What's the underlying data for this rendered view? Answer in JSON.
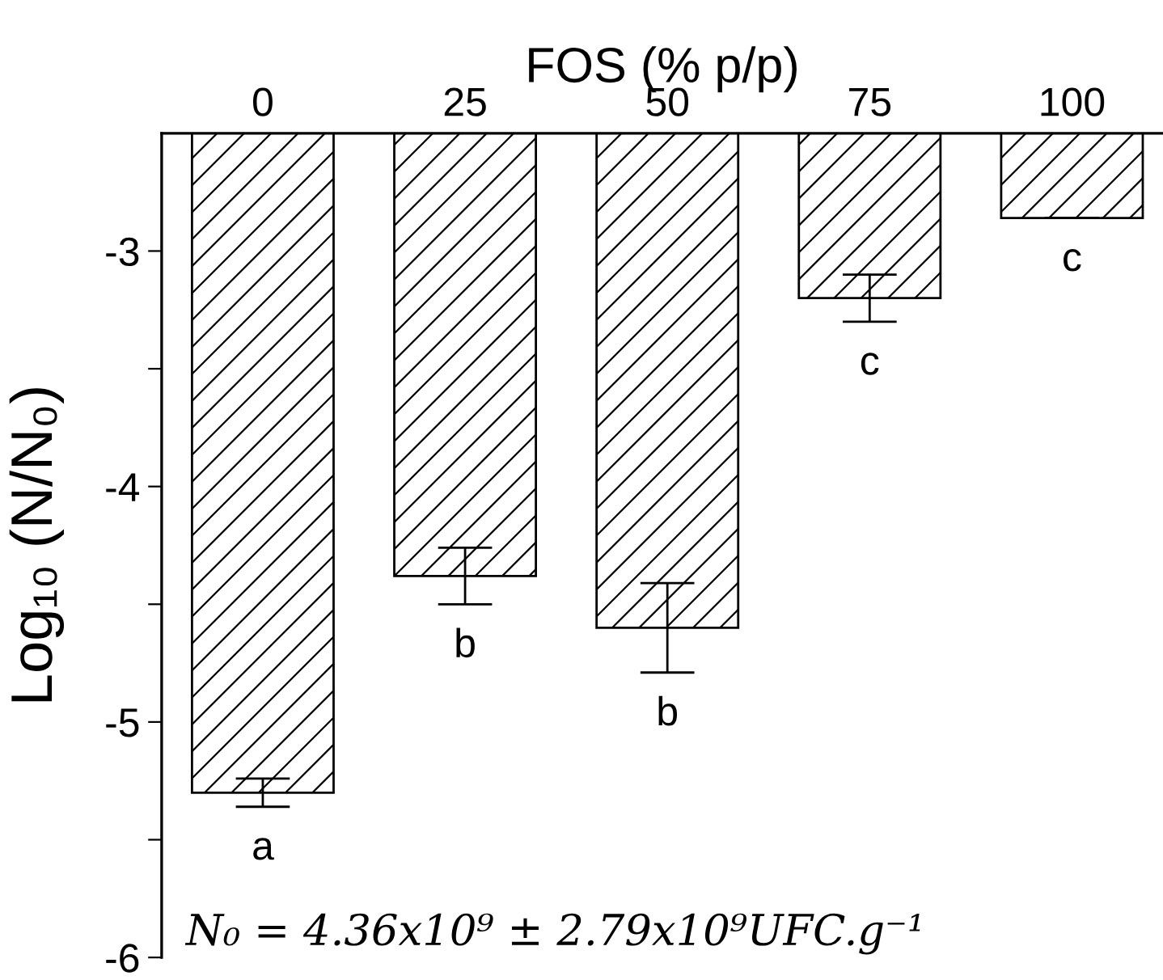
{
  "chart_data": {
    "type": "bar",
    "xlabel": "FOS (% p/p)",
    "ylabel": "Log₁₀ (N/N₀)",
    "categories": [
      "0",
      "25",
      "50",
      "75",
      "100"
    ],
    "values": [
      -5.3,
      -4.38,
      -4.6,
      -3.2,
      -2.86
    ],
    "errors": [
      0.06,
      0.12,
      0.19,
      0.1,
      0
    ],
    "color": "#000000",
    "ylim": [
      -6,
      -2.5
    ],
    "yticks": [
      -6,
      {
        "value": -5.5,
        "label": null
      },
      -5,
      {
        "value": -4.5,
        "label": null
      },
      -4,
      {
        "value": -3.5,
        "label": null
      },
      -3
    ],
    "grid": false,
    "legend": false,
    "annotations": [
      "a",
      "b",
      "b",
      "c",
      "c",
      "N₀ = 4.36x10⁹ ± 2.79x10⁹UFC.g⁻¹"
    ]
  }
}
